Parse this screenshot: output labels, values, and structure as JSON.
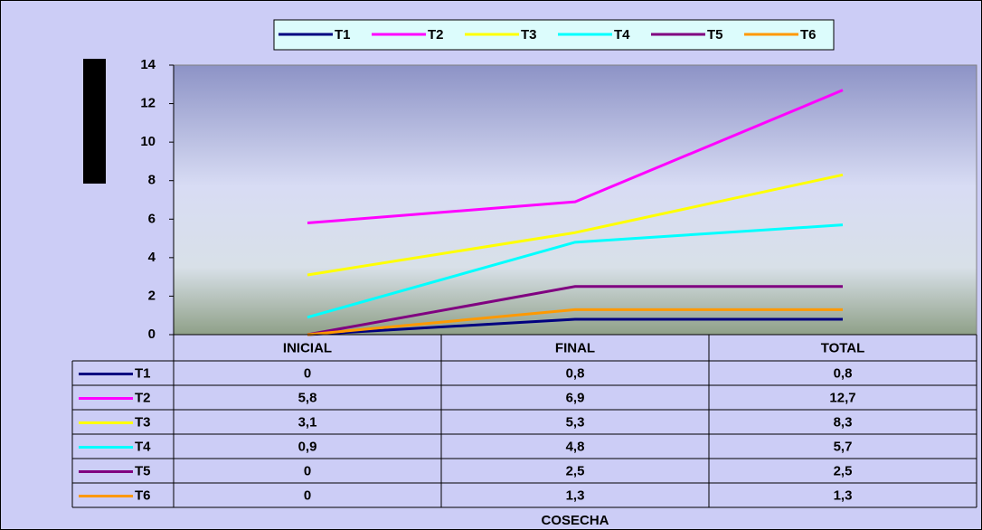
{
  "chart_data": {
    "type": "line",
    "categories": [
      "INICIAL",
      "FINAL",
      "TOTAL"
    ],
    "x_label": "COSECHA",
    "series": [
      {
        "name": "T1",
        "color": "#000080",
        "values": [
          0,
          0.8,
          0.8
        ],
        "value_labels": [
          "0",
          "0,8",
          "0,8"
        ]
      },
      {
        "name": "T2",
        "color": "#ff00ff",
        "values": [
          5.8,
          6.9,
          12.7
        ],
        "value_labels": [
          "5,8",
          "6,9",
          "12,7"
        ]
      },
      {
        "name": "T3",
        "color": "#ffff00",
        "values": [
          3.1,
          5.3,
          8.3
        ],
        "value_labels": [
          "3,1",
          "5,3",
          "8,3"
        ]
      },
      {
        "name": "T4",
        "color": "#00ffff",
        "values": [
          0.9,
          4.8,
          5.7
        ],
        "value_labels": [
          "0,9",
          "4,8",
          "5,7"
        ]
      },
      {
        "name": "T5",
        "color": "#800080",
        "values": [
          0,
          2.5,
          2.5
        ],
        "value_labels": [
          "0",
          "2,5",
          "2,5"
        ]
      },
      {
        "name": "T6",
        "color": "#ff9900",
        "values": [
          0,
          1.3,
          1.3
        ],
        "value_labels": [
          "0",
          "1,3",
          "1,3"
        ]
      }
    ],
    "ylim": [
      0,
      14
    ],
    "yticks": [
      0,
      2,
      4,
      6,
      8,
      10,
      12,
      14
    ]
  }
}
